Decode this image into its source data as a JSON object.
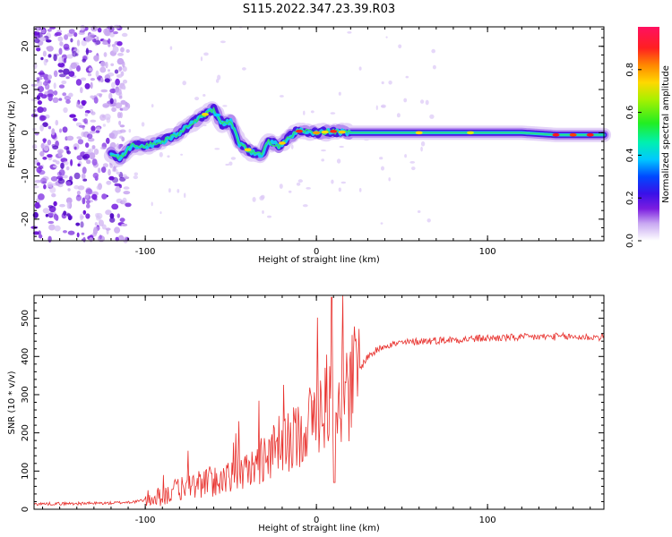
{
  "title": "S115.2022.347.23.39.R03",
  "chart_data": [
    {
      "type": "heatmap",
      "xlabel": "Height of straight line (km)",
      "ylabel": "Frequency (Hz)",
      "xlim": [
        -165,
        168
      ],
      "ylim": [
        -25,
        24.5
      ],
      "x_ticks": [
        -100,
        0,
        100
      ],
      "y_ticks": [
        -20,
        -10,
        0,
        10,
        20
      ],
      "colorbar": {
        "label": "Normalized spectral amplitude",
        "range": [
          0,
          1
        ],
        "ticks": [
          "0.0",
          "0.2",
          "0.4",
          "0.6",
          "0.8"
        ]
      },
      "ridge": {
        "description_points_x": [
          -125,
          -115,
          -108,
          -100,
          -90,
          -80,
          -70,
          -60,
          -55,
          -50,
          -45,
          -38,
          -32,
          -28,
          -22,
          -17,
          -12,
          -8,
          0,
          10,
          20,
          40,
          80,
          120,
          140,
          168
        ],
        "description_points_y": [
          -3.5,
          -6,
          -3,
          -3,
          -2,
          0,
          3,
          5.5,
          2,
          2.5,
          -2.5,
          -4.5,
          -5,
          -2,
          -3,
          -1.5,
          0.2,
          0.5,
          0,
          0.3,
          0,
          0,
          0,
          0,
          -0.5,
          -0.5
        ]
      }
    },
    {
      "type": "line",
      "xlabel": "Height of straight line (km)",
      "ylabel": "SNR (10 * v/v)",
      "xlim": [
        -165,
        168
      ],
      "ylim": [
        0,
        560
      ],
      "x_ticks": [
        -100,
        0,
        100
      ],
      "y_ticks": [
        0,
        100,
        200,
        300,
        400,
        500
      ],
      "line_color": "#e8302c",
      "trend_x": [
        -165,
        -120,
        -105,
        -90,
        -75,
        -60,
        -50,
        -40,
        -30,
        -20,
        -10,
        0,
        10,
        15,
        20,
        30,
        40,
        60,
        100,
        140,
        168
      ],
      "trend_y": [
        14,
        16,
        20,
        35,
        60,
        75,
        80,
        100,
        140,
        160,
        200,
        250,
        290,
        300,
        330,
        400,
        430,
        440,
        448,
        452,
        450
      ]
    }
  ]
}
